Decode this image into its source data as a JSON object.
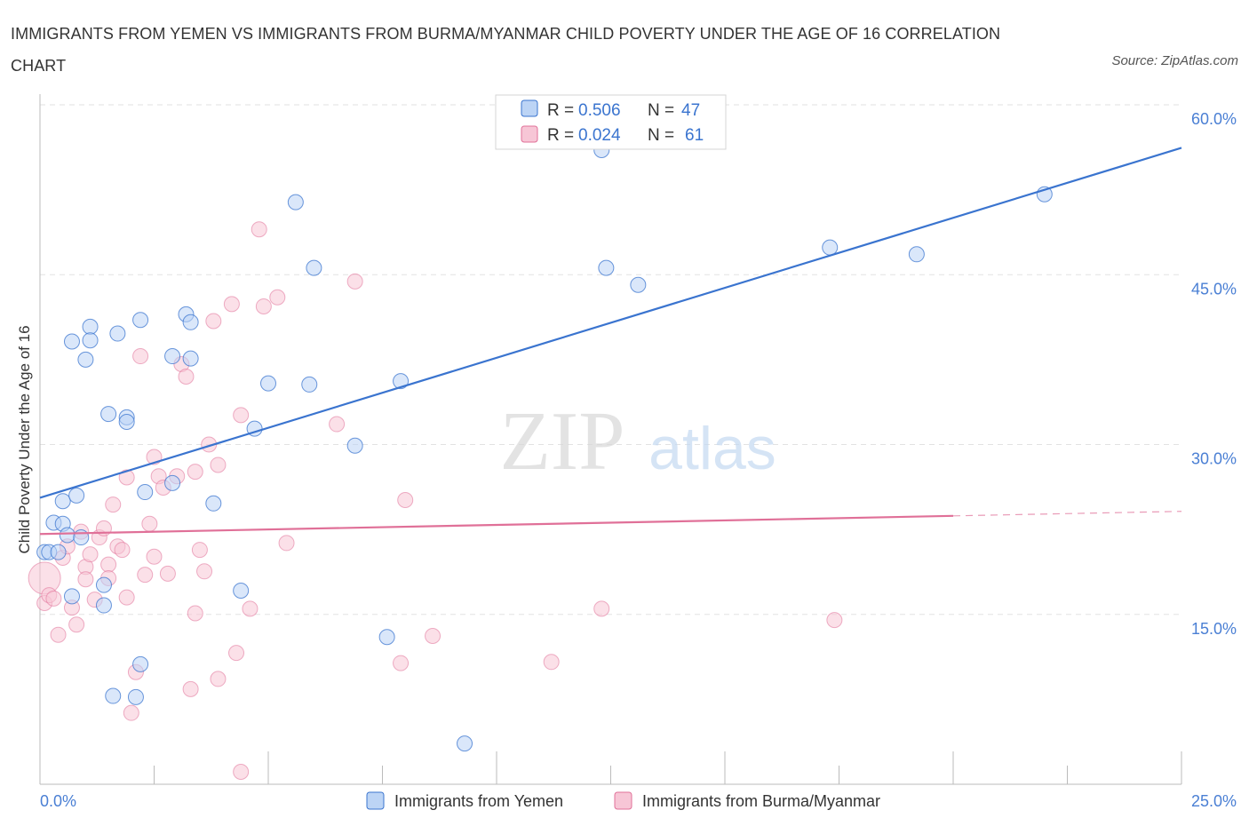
{
  "title": "IMMIGRANTS FROM YEMEN VS IMMIGRANTS FROM BURMA/MYANMAR CHILD POVERTY UNDER THE AGE OF 16 CORRELATION CHART",
  "source": "Source: ZipAtlas.com",
  "watermark": {
    "zip": "ZIP",
    "atlas": "atlas"
  },
  "colors": {
    "yemen": "#3a74cf",
    "yemen_fill": "#bcd4f5",
    "burma": "#e07098",
    "burma_fill": "#f7c6d6"
  },
  "chart_data": {
    "type": "scatter",
    "xlabel": "",
    "ylabel": "Child Poverty Under the Age of 16",
    "xlim": [
      0,
      25
    ],
    "ylim": [
      0,
      60
    ],
    "x_ticks": [
      {
        "v": 0,
        "label": "0.0%"
      },
      {
        "v": 25,
        "label": "25.0%"
      }
    ],
    "y_ticks": [
      {
        "v": 15,
        "label": "15.0%"
      },
      {
        "v": 30,
        "label": "30.0%"
      },
      {
        "v": 45,
        "label": "45.0%"
      },
      {
        "v": 60,
        "label": "60.0%"
      }
    ],
    "grid": true,
    "legend": [
      {
        "r_label": "R =",
        "r_value": "0.506",
        "n_label": "N =",
        "n_value": "47"
      },
      {
        "r_label": "R =",
        "r_value": "0.024",
        "n_label": "N =",
        "n_value": "61"
      }
    ],
    "series": [
      {
        "name": "Immigrants from Yemen",
        "trend": [
          [
            0,
            25.3
          ],
          [
            25,
            56.2
          ]
        ],
        "points": [
          [
            0.1,
            20.5
          ],
          [
            0.2,
            20.5
          ],
          [
            0.3,
            23.1
          ],
          [
            0.4,
            20.5
          ],
          [
            0.5,
            25.0
          ],
          [
            0.5,
            23.0
          ],
          [
            0.6,
            22.0
          ],
          [
            0.7,
            16.6
          ],
          [
            0.7,
            39.1
          ],
          [
            0.8,
            25.5
          ],
          [
            0.9,
            21.8
          ],
          [
            1.0,
            37.5
          ],
          [
            1.1,
            40.4
          ],
          [
            1.1,
            39.2
          ],
          [
            1.4,
            17.6
          ],
          [
            1.4,
            15.8
          ],
          [
            1.5,
            32.7
          ],
          [
            1.6,
            7.8
          ],
          [
            1.7,
            39.8
          ],
          [
            1.9,
            32.4
          ],
          [
            1.9,
            32.0
          ],
          [
            2.1,
            7.7
          ],
          [
            2.2,
            10.6
          ],
          [
            2.2,
            41.0
          ],
          [
            2.3,
            25.8
          ],
          [
            2.9,
            37.8
          ],
          [
            2.9,
            26.6
          ],
          [
            3.2,
            41.5
          ],
          [
            3.3,
            37.6
          ],
          [
            3.3,
            40.8
          ],
          [
            3.8,
            24.8
          ],
          [
            4.4,
            17.1
          ],
          [
            4.7,
            31.4
          ],
          [
            5.0,
            35.4
          ],
          [
            5.6,
            51.4
          ],
          [
            5.9,
            35.3
          ],
          [
            6.0,
            45.6
          ],
          [
            6.9,
            29.9
          ],
          [
            7.6,
            13.0
          ],
          [
            7.9,
            35.6
          ],
          [
            9.3,
            3.6
          ],
          [
            12.3,
            56.0
          ],
          [
            12.4,
            45.6
          ],
          [
            13.1,
            44.1
          ],
          [
            17.3,
            47.4
          ],
          [
            19.2,
            46.8
          ],
          [
            22.0,
            52.1
          ]
        ]
      },
      {
        "name": "Immigrants from Burma/Myanmar",
        "trend": [
          [
            0,
            22.1
          ],
          [
            20,
            23.7
          ]
        ],
        "trend_dashed": [
          [
            20,
            23.7
          ],
          [
            25,
            24.1
          ]
        ],
        "points": [
          [
            0.1,
            18.2
          ],
          [
            0.1,
            16.0
          ],
          [
            0.2,
            16.7
          ],
          [
            0.3,
            16.4
          ],
          [
            0.4,
            13.2
          ],
          [
            0.5,
            20.0
          ],
          [
            0.6,
            21.0
          ],
          [
            0.7,
            15.6
          ],
          [
            0.8,
            14.1
          ],
          [
            0.9,
            22.3
          ],
          [
            1.0,
            19.2
          ],
          [
            1.0,
            18.1
          ],
          [
            1.1,
            20.3
          ],
          [
            1.2,
            16.3
          ],
          [
            1.3,
            21.8
          ],
          [
            1.4,
            22.6
          ],
          [
            1.5,
            19.4
          ],
          [
            1.5,
            18.2
          ],
          [
            1.6,
            24.7
          ],
          [
            1.7,
            21.0
          ],
          [
            1.8,
            20.7
          ],
          [
            1.9,
            16.5
          ],
          [
            1.9,
            27.1
          ],
          [
            2.0,
            6.3
          ],
          [
            2.1,
            9.9
          ],
          [
            2.2,
            37.8
          ],
          [
            2.3,
            18.5
          ],
          [
            2.4,
            23.0
          ],
          [
            2.5,
            20.1
          ],
          [
            2.5,
            28.9
          ],
          [
            2.6,
            27.2
          ],
          [
            2.7,
            26.2
          ],
          [
            2.8,
            18.6
          ],
          [
            3.0,
            27.2
          ],
          [
            3.1,
            37.1
          ],
          [
            3.2,
            36.0
          ],
          [
            3.3,
            8.4
          ],
          [
            3.4,
            15.1
          ],
          [
            3.4,
            27.6
          ],
          [
            3.5,
            20.7
          ],
          [
            3.6,
            18.8
          ],
          [
            3.7,
            30.0
          ],
          [
            3.8,
            40.9
          ],
          [
            3.9,
            28.2
          ],
          [
            3.9,
            9.3
          ],
          [
            4.2,
            42.4
          ],
          [
            4.3,
            11.6
          ],
          [
            4.4,
            32.6
          ],
          [
            4.4,
            1.1
          ],
          [
            4.6,
            15.5
          ],
          [
            4.8,
            49.0
          ],
          [
            4.9,
            42.2
          ],
          [
            5.2,
            43.0
          ],
          [
            5.4,
            21.3
          ],
          [
            6.5,
            31.8
          ],
          [
            6.9,
            44.4
          ],
          [
            7.9,
            10.7
          ],
          [
            8.0,
            25.1
          ],
          [
            8.6,
            13.1
          ],
          [
            11.2,
            10.8
          ],
          [
            12.3,
            15.5
          ],
          [
            17.4,
            14.5
          ]
        ]
      }
    ]
  }
}
